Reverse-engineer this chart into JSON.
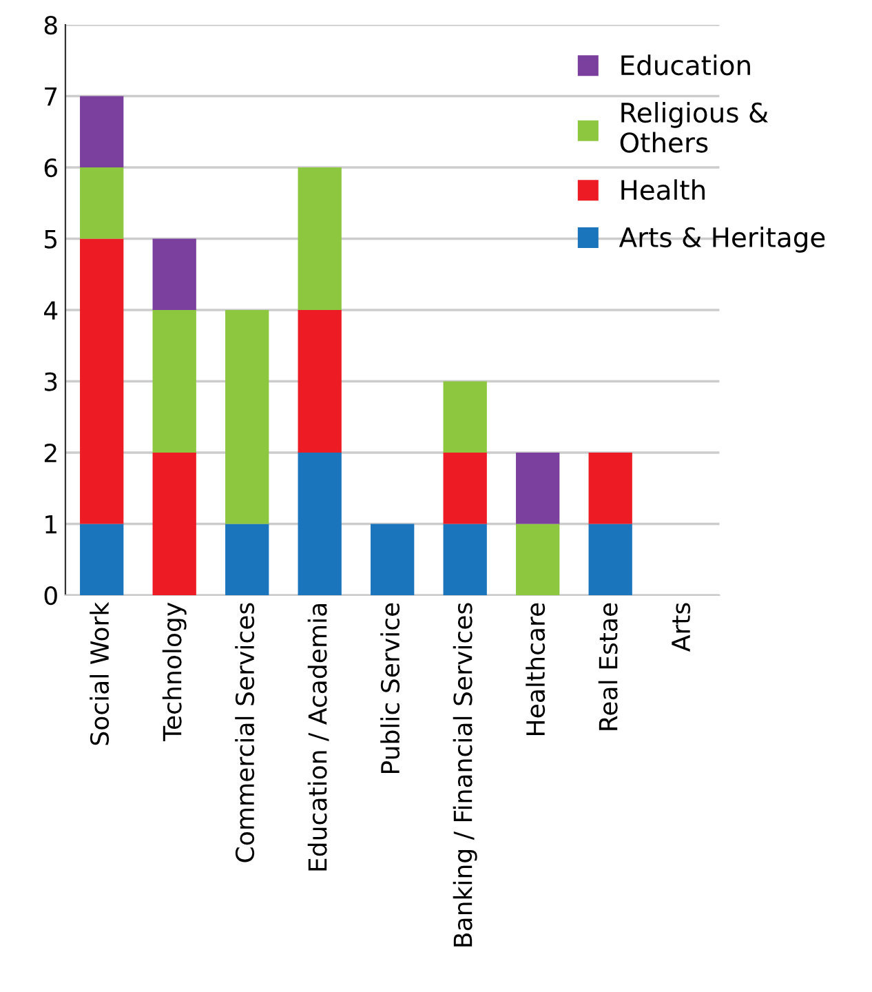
{
  "chart_data": {
    "type": "bar",
    "stacked": true,
    "categories": [
      "Social Work",
      "Technology",
      "Commercial Services",
      "Education / Academia",
      "Public Service",
      "Banking / Financial Services",
      "Healthcare",
      "Real Estae",
      "Arts"
    ],
    "series": [
      {
        "name": "Arts & Heritage",
        "color": "#1b75bc",
        "values": [
          1,
          0,
          1,
          2,
          1,
          1,
          0,
          1,
          0
        ]
      },
      {
        "name": "Health",
        "color": "#ed1c24",
        "values": [
          4,
          2,
          0,
          2,
          0,
          1,
          0,
          1,
          0
        ]
      },
      {
        "name": "Religious &\nOthers",
        "color": "#8dc63f",
        "values": [
          1,
          2,
          3,
          2,
          0,
          1,
          1,
          0,
          0
        ]
      },
      {
        "name": "Education",
        "color": "#7b3f9e",
        "values": [
          1,
          1,
          0,
          0,
          0,
          0,
          1,
          0,
          0
        ]
      }
    ],
    "ylim": [
      0,
      8
    ],
    "yticks": [
      0,
      1,
      2,
      3,
      4,
      5,
      6,
      7,
      8
    ],
    "grid": "y",
    "legend": "top right"
  }
}
